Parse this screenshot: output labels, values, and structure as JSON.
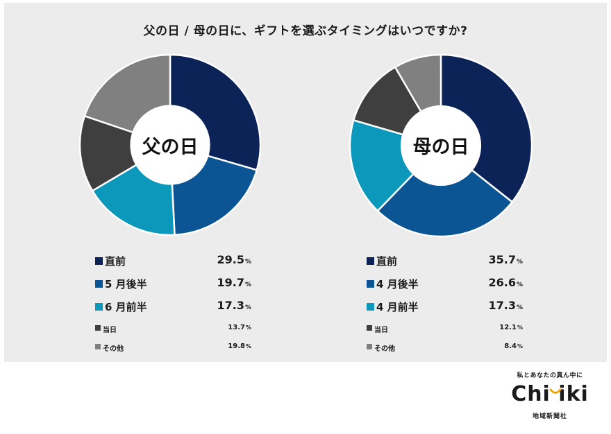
{
  "title": "父の日 / 母の日に、ギフトを選ぶタイミングはいつですか?",
  "chart_data": [
    {
      "type": "pie",
      "center_label": "父の日",
      "categories": [
        "直前",
        "5 月後半",
        "6 月前半",
        "当日",
        "その他"
      ],
      "values": [
        29.5,
        19.7,
        17.3,
        13.7,
        19.8
      ],
      "value_text": [
        "29.5",
        "19.7",
        "17.3",
        "13.7",
        "19.8"
      ],
      "unit": "%",
      "colors": [
        "#0c2358",
        "#0b5595",
        "#0c98bb",
        "#3f3f3f",
        "#808080"
      ],
      "donut": true
    },
    {
      "type": "pie",
      "center_label": "母の日",
      "categories": [
        "直前",
        "4 月後半",
        "4 月前半",
        "当日",
        "その他"
      ],
      "values": [
        35.7,
        26.6,
        17.3,
        12.1,
        8.4
      ],
      "value_text": [
        "35.7",
        "26.6",
        "17.3",
        "12.1",
        "8.4"
      ],
      "unit": "%",
      "colors": [
        "#0c2358",
        "#0b5595",
        "#0c98bb",
        "#3f3f3f",
        "#808080"
      ],
      "donut": true
    }
  ],
  "logo": {
    "tagline": "私とあなたの真ん中に",
    "wordmark": "Chi  iki",
    "company": "地域新聞社",
    "accent_color": "#f0a500"
  }
}
